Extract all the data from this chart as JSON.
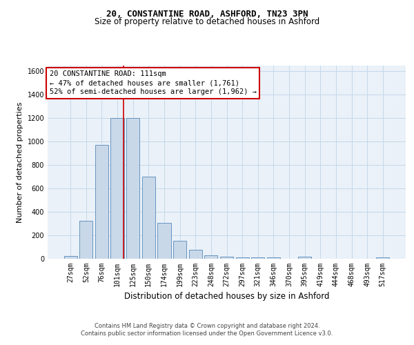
{
  "title": "20, CONSTANTINE ROAD, ASHFORD, TN23 3PN",
  "subtitle": "Size of property relative to detached houses in Ashford",
  "xlabel": "Distribution of detached houses by size in Ashford",
  "ylabel": "Number of detached properties",
  "footer_line1": "Contains HM Land Registry data © Crown copyright and database right 2024.",
  "footer_line2": "Contains public sector information licensed under the Open Government Licence v3.0.",
  "categories": [
    "27sqm",
    "52sqm",
    "76sqm",
    "101sqm",
    "125sqm",
    "150sqm",
    "174sqm",
    "199sqm",
    "223sqm",
    "248sqm",
    "272sqm",
    "297sqm",
    "321sqm",
    "346sqm",
    "370sqm",
    "395sqm",
    "419sqm",
    "444sqm",
    "468sqm",
    "493sqm",
    "517sqm"
  ],
  "values": [
    25,
    325,
    970,
    1200,
    1200,
    700,
    305,
    155,
    75,
    30,
    15,
    10,
    10,
    10,
    0,
    15,
    0,
    0,
    0,
    0,
    10
  ],
  "bar_color": "#c8d8e8",
  "bar_edge_color": "#5588bb",
  "grid_color": "#c5d8ea",
  "bg_color": "#eaf1f8",
  "property_line_color": "#cc0000",
  "annotation_line1": "20 CONSTANTINE ROAD: 111sqm",
  "annotation_line2": "← 47% of detached houses are smaller (1,761)",
  "annotation_line3": "52% of semi-detached houses are larger (1,962) →",
  "annotation_box_color": "#ffffff",
  "annotation_box_edge_color": "#cc0000",
  "ylim": [
    0,
    1650
  ],
  "title_fontsize": 9,
  "subtitle_fontsize": 8.5,
  "tick_fontsize": 7,
  "ylabel_fontsize": 8,
  "xlabel_fontsize": 8.5,
  "annotation_fontsize": 7.5,
  "footer_fontsize": 6
}
